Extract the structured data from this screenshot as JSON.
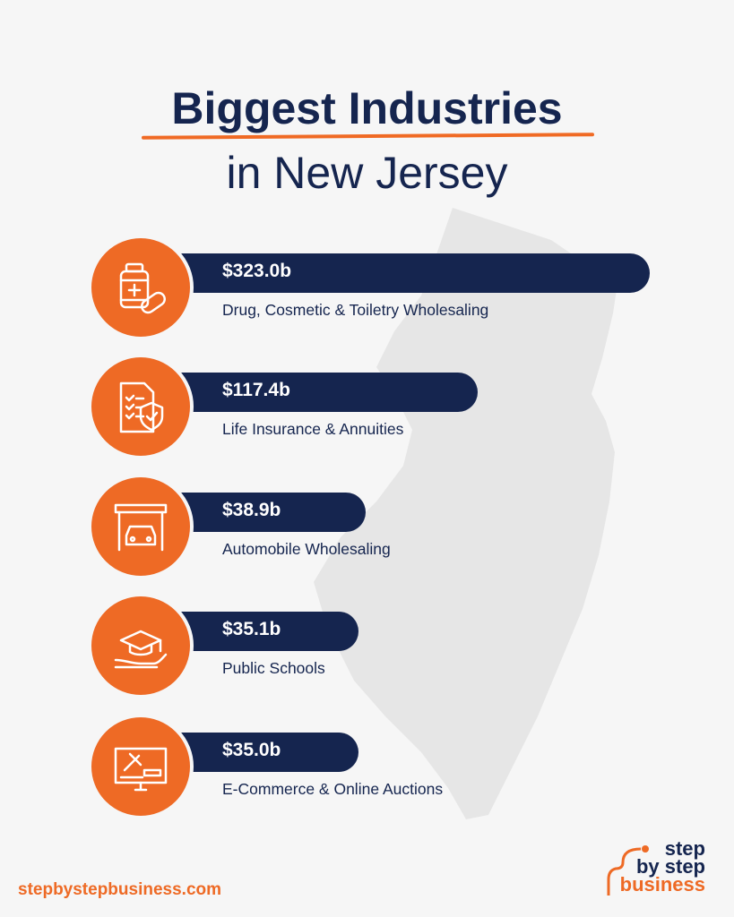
{
  "title": {
    "line1": "Biggest Industries",
    "line2": "in New Jersey"
  },
  "colors": {
    "navy": "#15254f",
    "orange": "#ee6a25",
    "background": "#f6f6f6",
    "map": "#e6e6e6"
  },
  "chart_data": {
    "type": "bar",
    "orientation": "horizontal",
    "title": "Biggest Industries in New Jersey",
    "categories": [
      "Drug, Cosmetic & Toiletry Wholesaling",
      "Life Insurance & Annuities",
      "Automobile Wholesaling",
      "Public Schools",
      "E-Commerce & Online Auctions"
    ],
    "values": [
      323.0,
      117.4,
      38.9,
      35.1,
      35.0
    ],
    "value_labels": [
      "$323.0b",
      "$117.4b",
      "$38.9b",
      "$35.1b",
      "$35.0b"
    ],
    "icons": [
      "medicine-bottle-pills-icon",
      "insurance-document-shield-icon",
      "garage-car-icon",
      "graduation-cap-hand-icon",
      "auction-gavel-monitor-icon"
    ],
    "unit": "billion USD",
    "grid": false
  },
  "footer": {
    "url": "stepbystepbusiness.com",
    "logo": {
      "line1": "step",
      "line2": "by step",
      "line3": "business"
    }
  }
}
